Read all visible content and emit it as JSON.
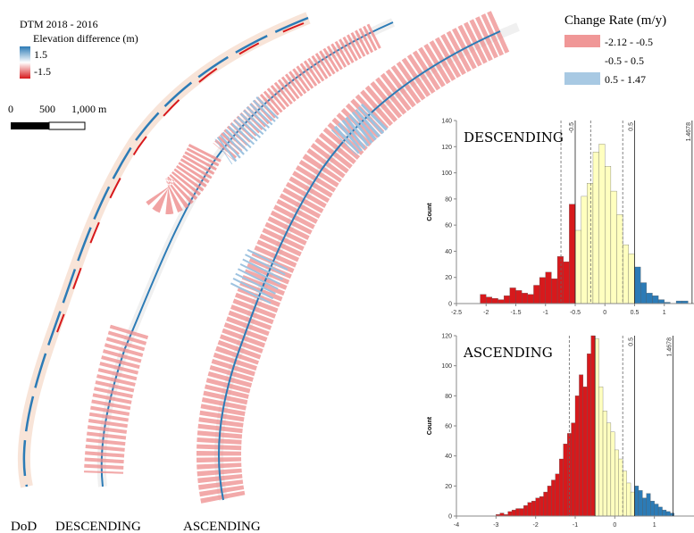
{
  "map": {
    "dtm_title": "DTM 2018 - 2016",
    "dtm_subtitle": "Elevation difference (m)",
    "dtm_high": "1.5",
    "dtm_low": "-1.5",
    "scale_labels": [
      "0",
      "500",
      "1,000 m"
    ],
    "panel_labels": [
      "DoD",
      "DESCENDING",
      "ASCENDING"
    ],
    "legend_title": "Change Rate (m/y)",
    "legend": [
      {
        "label": "-2.12 - -0.5",
        "color": "#ee8c8c"
      },
      {
        "label": "-0.5 - 0.5",
        "color": "#ffffff"
      },
      {
        "label": "0.5 - 1.47",
        "color": "#9ec3e0"
      }
    ]
  },
  "chart_data": [
    {
      "type": "histogram",
      "title": "DESCENDING",
      "y_label": "Count",
      "xlim": [
        -2.5,
        1.5
      ],
      "xticks": [
        -2.5,
        -2,
        -1.5,
        -1,
        -0.5,
        0,
        0.5,
        1
      ],
      "ylim": [
        0,
        140
      ],
      "yticks": [
        0,
        20,
        40,
        60,
        80,
        100,
        120,
        140
      ],
      "series": [
        {
          "color": "#d7191c",
          "bins": [
            -2.1,
            -2.0,
            -1.9,
            -1.8,
            -1.7,
            -1.6,
            -1.5,
            -1.4,
            -1.3,
            -1.2,
            -1.1,
            -1.0,
            -0.9,
            -0.8,
            -0.7,
            -0.6,
            -0.5
          ],
          "values": [
            7,
            5,
            4,
            3,
            6,
            12,
            10,
            8,
            7,
            14,
            20,
            24,
            19,
            36,
            32,
            76
          ]
        },
        {
          "color": "#ffffbf",
          "bins": [
            -0.5,
            -0.4,
            -0.3,
            -0.2,
            -0.1,
            0,
            0.1,
            0.2,
            0.3,
            0.4,
            0.5
          ],
          "values": [
            56,
            82,
            92,
            116,
            122,
            105,
            86,
            68,
            45,
            38
          ]
        },
        {
          "color": "#2c7bb6",
          "bins": [
            0.5,
            0.6,
            0.7,
            0.8,
            0.9,
            1.0,
            1.1,
            1.2,
            1.3,
            1.4
          ],
          "values": [
            28,
            16,
            8,
            6,
            3,
            1,
            0,
            2,
            2
          ]
        }
      ],
      "ref_lines": [
        {
          "value": -0.74,
          "style": "dashed"
        },
        {
          "value": -0.5,
          "style": "solid",
          "label": "-0.5"
        },
        {
          "value": -0.24,
          "style": "dashed"
        },
        {
          "value": 0.3,
          "style": "dashed"
        },
        {
          "value": 0.5,
          "style": "solid",
          "label": "0.5"
        },
        {
          "value": 1.4678,
          "style": "solid",
          "label": "1.4678"
        }
      ]
    },
    {
      "type": "histogram",
      "title": "ASCENDING",
      "y_label": "Count",
      "xlim": [
        -4,
        2
      ],
      "xticks": [
        -4,
        -3,
        -2,
        -1,
        0,
        1
      ],
      "ylim": [
        0,
        120
      ],
      "yticks": [
        0,
        20,
        40,
        60,
        80,
        100,
        120
      ],
      "series": [
        {
          "color": "#d7191c",
          "bins": [
            -3.0,
            -2.9,
            -2.8,
            -2.7,
            -2.6,
            -2.5,
            -2.4,
            -2.3,
            -2.2,
            -2.1,
            -2.0,
            -1.9,
            -1.8,
            -1.7,
            -1.6,
            -1.5,
            -1.4,
            -1.3,
            -1.2,
            -1.1,
            -1.0,
            -0.9,
            -0.8,
            -0.7,
            -0.6,
            -0.5
          ],
          "values": [
            1,
            2,
            1,
            3,
            4,
            5,
            5,
            7,
            9,
            10,
            12,
            13,
            16,
            20,
            24,
            28,
            38,
            48,
            55,
            62,
            80,
            94,
            86,
            108,
            120
          ]
        },
        {
          "color": "#ffffbf",
          "bins": [
            -0.5,
            -0.4,
            -0.3,
            -0.2,
            -0.1,
            0,
            0.1,
            0.2,
            0.3,
            0.4,
            0.5
          ],
          "values": [
            118,
            86,
            70,
            62,
            56,
            44,
            38,
            30,
            22,
            16
          ]
        },
        {
          "color": "#2c7bb6",
          "bins": [
            0.5,
            0.6,
            0.7,
            0.8,
            0.9,
            1.0,
            1.1,
            1.2,
            1.3,
            1.4,
            1.5
          ],
          "values": [
            20,
            17,
            12,
            15,
            10,
            8,
            6,
            4,
            3,
            2
          ]
        }
      ],
      "ref_lines": [
        {
          "value": -1.15,
          "style": "dashed"
        },
        {
          "value": -0.5,
          "style": "solid"
        },
        {
          "value": 0.2,
          "style": "dashed"
        },
        {
          "value": 0.5,
          "style": "solid",
          "label": "0.5"
        },
        {
          "value": 1.4678,
          "style": "solid",
          "label": "1.4678"
        }
      ]
    }
  ]
}
